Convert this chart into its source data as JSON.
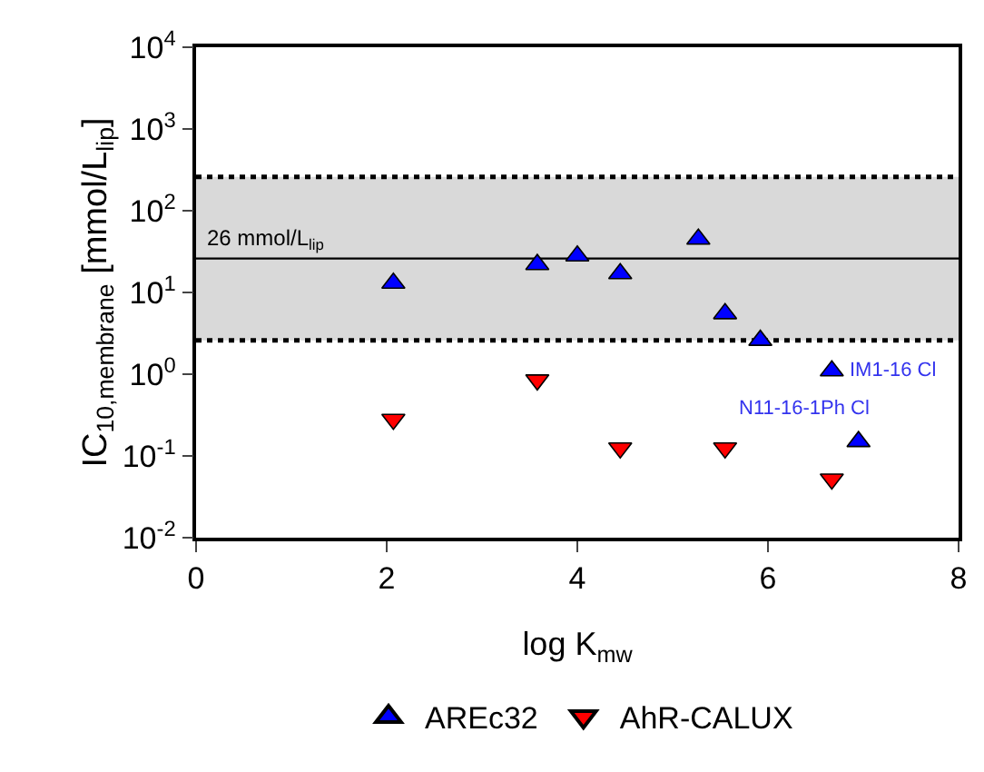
{
  "chart_data": {
    "type": "scatter",
    "xlabel": "log K$_{mw}$",
    "ylabel": "IC$_{10,membrane}$ [mmol/L$_{lip}$]",
    "series": [
      {
        "name": "AREc32",
        "color": "#0000ff",
        "marker": "triangle",
        "x": [
          2.07,
          3.58,
          4.0,
          4.45,
          5.27,
          5.55,
          5.92,
          6.67,
          6.95
        ],
        "values": [
          13,
          22,
          28,
          17,
          45,
          5.5,
          2.6,
          1.1,
          0.15
        ]
      },
      {
        "name": "AhR-CALUX",
        "color": "#ff0000",
        "marker": "triangle-down",
        "x": [
          2.07,
          3.58,
          4.45,
          5.55,
          6.67
        ],
        "values": [
          0.28,
          0.85,
          0.125,
          0.125,
          0.052
        ]
      }
    ],
    "xlim": [
      0,
      8
    ],
    "xticks": [
      0,
      2,
      4,
      6,
      8
    ],
    "ylim": [
      0.01,
      10000
    ],
    "log": true,
    "yticks": [
      {
        "value": 0.01,
        "label": "10$^{-2}$"
      },
      {
        "value": 0.1,
        "label": "10$^{-1}$"
      },
      {
        "value": 1,
        "label": "10$^{0}$"
      },
      {
        "value": 10,
        "label": "10$^{1}$"
      },
      {
        "value": 100,
        "label": "10$^{2}$"
      },
      {
        "value": 1000,
        "label": "10$^{3}$"
      },
      {
        "value": 10000,
        "label": "10$^{4}$"
      }
    ],
    "ref_lines": [
      {
        "axis": "y",
        "value": 26,
        "label": "26 mmol/L$_{lip}$",
        "color": "#000000",
        "line_style": "solid"
      },
      {
        "axis": "y",
        "value": 2.6,
        "color": "#000000",
        "line_style": "dotted"
      },
      {
        "axis": "y",
        "value": 260,
        "color": "#000000",
        "line_style": "dotted"
      }
    ],
    "bands": [
      {
        "axis": "y",
        "from": 2.6,
        "to": 260,
        "color": "#d9d9d9"
      }
    ],
    "annotations": [
      {
        "text": "IM1-16 Cl",
        "x": 6.67,
        "y": 1.1
      },
      {
        "text": "N11-16-1Ph Cl",
        "x": 6.95,
        "y": 0.15
      }
    ],
    "grid": false,
    "legend": "bottom"
  }
}
